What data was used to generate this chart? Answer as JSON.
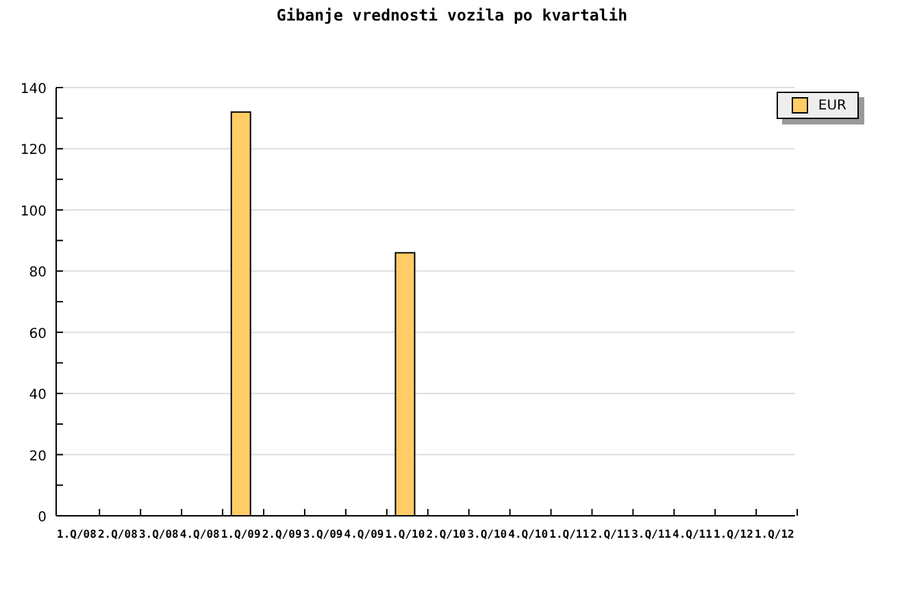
{
  "chart_data": {
    "type": "bar",
    "title": "Gibanje vrednosti vozila po kvartalih",
    "categories": [
      "1.Q/08",
      "2.Q/08",
      "3.Q/08",
      "4.Q/08",
      "1.Q/09",
      "2.Q/09",
      "3.Q/09",
      "4.Q/09",
      "1.Q/10",
      "2.Q/10",
      "3.Q/10",
      "4.Q/10",
      "1.Q/11",
      "2.Q/11",
      "3.Q/11",
      "4.Q/11",
      "1.Q/12",
      "1.Q/12"
    ],
    "series": [
      {
        "name": "EUR",
        "color": "#ffcc66",
        "values": [
          null,
          null,
          null,
          null,
          132,
          null,
          null,
          null,
          86,
          null,
          null,
          null,
          null,
          null,
          null,
          null,
          null,
          null
        ]
      }
    ],
    "ylim": [
      0,
      140
    ],
    "yticks": [
      0,
      {
        "value": 10,
        "label": null
      },
      20,
      {
        "value": 30,
        "label": null
      },
      40,
      {
        "value": 50,
        "label": null
      },
      60,
      {
        "value": 70,
        "label": null
      },
      80,
      {
        "value": 90,
        "label": null
      },
      100,
      {
        "value": 110,
        "label": null
      },
      120,
      {
        "value": 130,
        "label": null
      },
      140
    ],
    "grid": "y",
    "legend": "top right"
  }
}
